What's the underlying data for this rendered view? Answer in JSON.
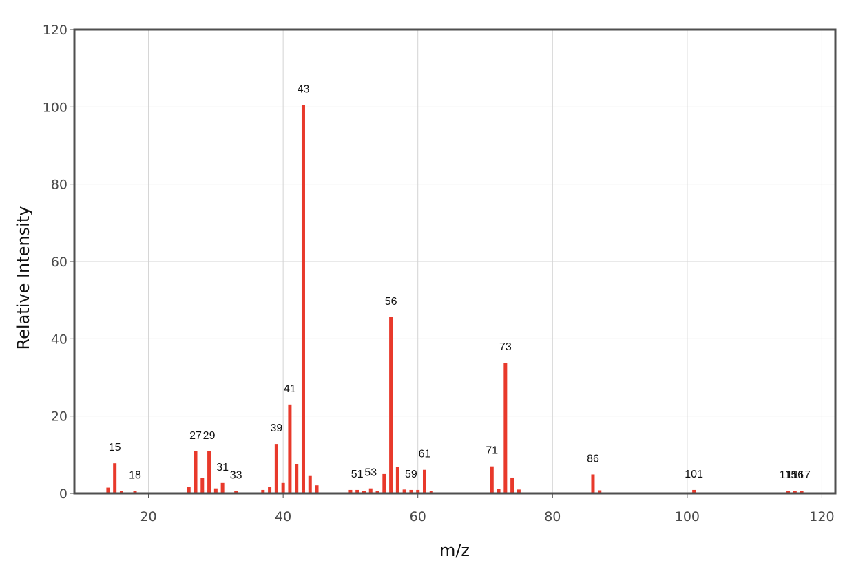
{
  "chart_data": {
    "type": "bar",
    "xlabel": "m/z",
    "ylabel": "Relative Intensity",
    "xlim": [
      9,
      122
    ],
    "ylim": [
      0,
      120
    ],
    "xticks": [
      20,
      40,
      60,
      80,
      100,
      120
    ],
    "yticks": [
      0,
      20,
      40,
      60,
      80,
      100,
      120
    ],
    "grid": true,
    "bar_color": "#e8392b",
    "series": [
      {
        "x": [
          14,
          15,
          16,
          18,
          26,
          27,
          28,
          29,
          30,
          31,
          33,
          37,
          38,
          39,
          40,
          41,
          42,
          43,
          44,
          45,
          50,
          51,
          52,
          53,
          54,
          55,
          56,
          57,
          58,
          59,
          60,
          61,
          62,
          71,
          72,
          73,
          74,
          75,
          86,
          87,
          101,
          115,
          116,
          117
        ],
        "y": [
          1.5,
          7.8,
          0.7,
          0.6,
          1.6,
          10.9,
          4.0,
          10.9,
          1.3,
          2.7,
          0.6,
          0.9,
          1.6,
          12.8,
          2.7,
          23.0,
          7.6,
          100.5,
          4.5,
          2.1,
          0.9,
          0.9,
          0.7,
          1.3,
          0.7,
          5.0,
          45.6,
          6.9,
          1.0,
          0.9,
          0.9,
          6.1,
          0.6,
          7.0,
          1.2,
          33.8,
          4.1,
          1.0,
          4.9,
          0.8,
          0.9,
          0.7,
          0.7,
          0.7
        ]
      }
    ],
    "peak_labels": [
      "15",
      "18",
      "27",
      "29",
      "31",
      "33",
      "39",
      "41",
      "43",
      "51",
      "53",
      "56",
      "59",
      "61",
      "71",
      "73",
      "86",
      "101",
      "115",
      "116",
      "117"
    ]
  }
}
